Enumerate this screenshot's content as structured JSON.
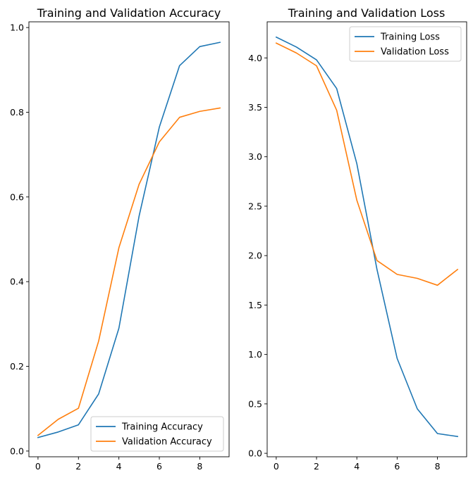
{
  "colors": {
    "training": "#1f77b4",
    "validation": "#ff7f0e",
    "axis": "#000000",
    "legend_border": "#cccccc"
  },
  "chart_data": [
    {
      "type": "line",
      "title": "Training and Validation Accuracy",
      "xlabel": "",
      "ylabel": "",
      "xlim": [
        -0.45,
        9.45
      ],
      "ylim": [
        -0.0135,
        1.0135
      ],
      "xticks": [
        0,
        2,
        4,
        6,
        8
      ],
      "xtick_labels": [
        "0",
        "2",
        "4",
        "6",
        "8"
      ],
      "yticks": [
        0.0,
        0.2,
        0.4,
        0.6,
        0.8,
        1.0
      ],
      "ytick_labels": [
        "0.0",
        "0.2",
        "0.4",
        "0.6",
        "0.8",
        "1.0"
      ],
      "grid": false,
      "legend_placement": "lower right",
      "x": [
        0,
        1,
        2,
        3,
        4,
        5,
        6,
        7,
        8,
        9
      ],
      "series": [
        {
          "name": "Training Accuracy",
          "color_key": "training",
          "values": [
            0.032,
            0.045,
            0.062,
            0.135,
            0.29,
            0.555,
            0.765,
            0.91,
            0.955,
            0.965
          ]
        },
        {
          "name": "Validation Accuracy",
          "color_key": "validation",
          "values": [
            0.037,
            0.075,
            0.101,
            0.26,
            0.48,
            0.63,
            0.73,
            0.788,
            0.802,
            0.81
          ]
        }
      ]
    },
    {
      "type": "line",
      "title": "Training and Validation Loss",
      "xlabel": "",
      "ylabel": "",
      "xlim": [
        -0.45,
        9.45
      ],
      "ylim": [
        -0.035,
        4.365
      ],
      "xticks": [
        0,
        2,
        4,
        6,
        8
      ],
      "xtick_labels": [
        "0",
        "2",
        "4",
        "6",
        "8"
      ],
      "yticks": [
        0.0,
        0.5,
        1.0,
        1.5,
        2.0,
        2.5,
        3.0,
        3.5,
        4.0
      ],
      "ytick_labels": [
        "0.0",
        "0.5",
        "1.0",
        "1.5",
        "2.0",
        "2.5",
        "3.0",
        "3.5",
        "4.0"
      ],
      "grid": false,
      "legend_placement": "upper right",
      "x": [
        0,
        1,
        2,
        3,
        4,
        5,
        6,
        7,
        8,
        9
      ],
      "series": [
        {
          "name": "Training Loss",
          "color_key": "training",
          "values": [
            4.21,
            4.11,
            3.98,
            3.69,
            2.93,
            1.86,
            0.96,
            0.45,
            0.2,
            0.17
          ]
        },
        {
          "name": "Validation Loss",
          "color_key": "validation",
          "values": [
            4.15,
            4.05,
            3.92,
            3.47,
            2.56,
            1.95,
            1.81,
            1.77,
            1.7,
            1.86
          ]
        }
      ]
    }
  ]
}
